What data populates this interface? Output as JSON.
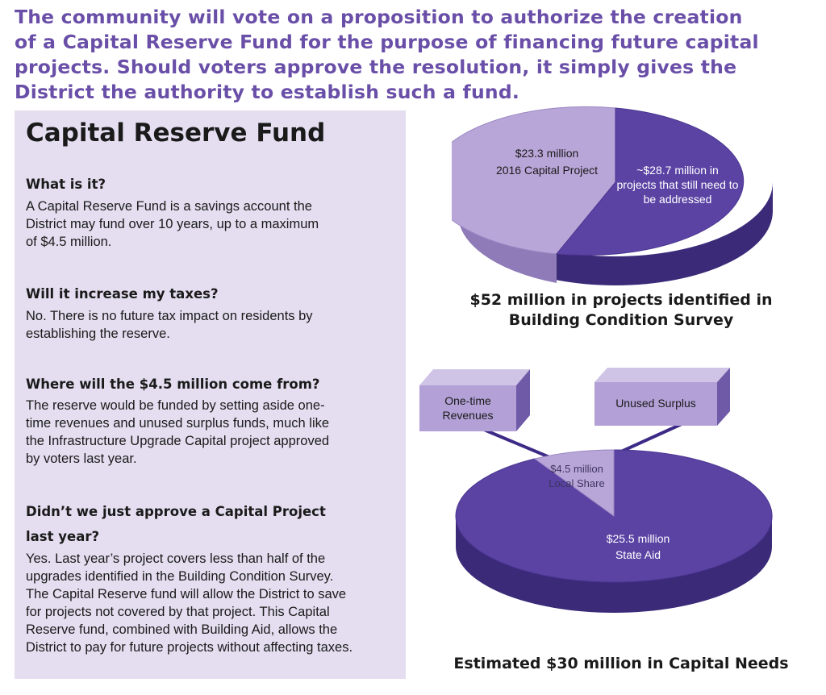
{
  "intro": {
    "line1": "The community will vote on a proposition to authorize the creation",
    "line2": "of a Capital Reserve Fund for the purpose of financing future capital",
    "line3": "projects. Should voters approve the resolution, it simply gives the",
    "line4": "District the authority to establish such a fund."
  },
  "panel": {
    "title": "Capital Reserve Fund",
    "sections": [
      {
        "question": [
          "What is it?"
        ],
        "answer": [
          "A Capital Reserve Fund is a savings account the",
          "District may fund over 10 years, up to a maximum",
          "of $4.5 million."
        ]
      },
      {
        "question": [
          "Will it increase my taxes?"
        ],
        "answer": [
          "No. There is no future tax impact on residents by",
          "establishing the reserve."
        ]
      },
      {
        "question": [
          "Where will the $4.5 million come from?"
        ],
        "answer": [
          "The reserve would be funded by setting aside one-",
          "time revenues and unused surplus funds, much like",
          "the Infrastructure Upgrade Capital project approved",
          "by voters last year."
        ]
      },
      {
        "question": [
          "Didn’t we just approve a Capital Project",
          "last year?"
        ],
        "answer": [
          "Yes. Last year’s project covers less than half of the",
          "upgrades identified in the Building Condition Survey.",
          "The Capital Reserve fund will allow the District to save",
          "for projects not covered by that project. This Capital",
          "Reserve fund, combined with Building Aid, allows the",
          "District to pay for future projects without affecting taxes."
        ]
      }
    ]
  },
  "pie1": {
    "slice_a": {
      "line1": "$23.3 million",
      "line2": "2016 Capital Project"
    },
    "slice_b": {
      "line1": "~$28.7 million in",
      "line2": "projects that still need to",
      "line3": "be addressed"
    },
    "caption": {
      "line1": "$52 million in projects identified in",
      "line2": "Building Condition Survey"
    }
  },
  "pie2": {
    "box_left": {
      "line1": "One-time",
      "line2": "Revenues"
    },
    "box_right": {
      "line1": "Unused Surplus"
    },
    "slice_a": {
      "line1": "$4.5 million",
      "line2": "Local Share"
    },
    "slice_b": {
      "line1": "$25.5 million",
      "line2": "State Aid"
    },
    "caption": "Estimated $30 million in Capital Needs"
  },
  "colors": {
    "light_purple": "#b9a6d8",
    "dark_purple": "#5b43a4",
    "panel_bg": "#e4def0",
    "intro_text": "#6a4fa8"
  }
}
